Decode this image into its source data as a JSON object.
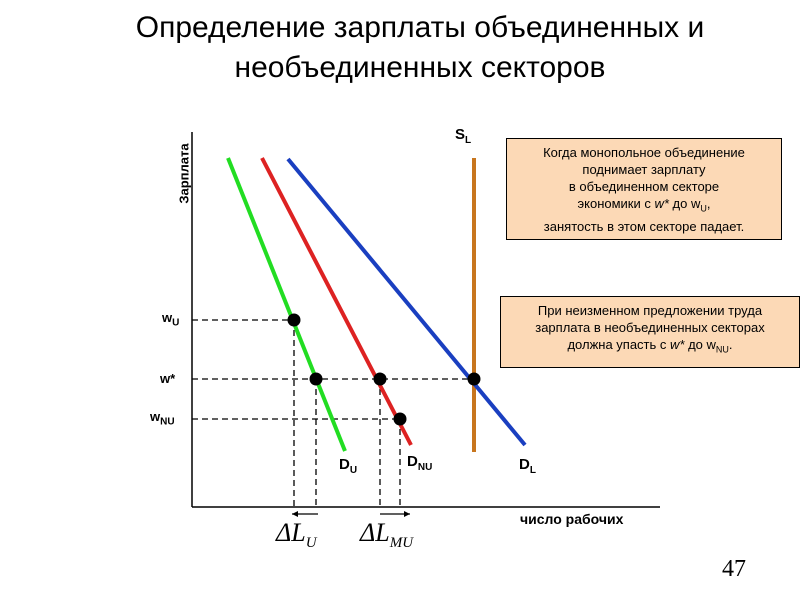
{
  "slide": {
    "title_line1": "Определение зарплаты объединенных и",
    "title_line2": "необъединенных секторов",
    "page_number": "47"
  },
  "axes": {
    "y_label": "Зарплата",
    "x_label": "число рабочих"
  },
  "wage_levels": [
    {
      "base": "w",
      "sub": "U"
    },
    {
      "base": "w*",
      "sub": ""
    },
    {
      "base": "w",
      "sub": "NU"
    }
  ],
  "curves": {
    "supply": {
      "base": "S",
      "sub": "L",
      "color": "#c8761e"
    },
    "demand_union": {
      "base": "D",
      "sub": "U",
      "color": "#22dd22"
    },
    "demand_nonunion": {
      "base": "D",
      "sub": "NU",
      "color": "#dd2222"
    },
    "demand_total": {
      "base": "D",
      "sub": "L",
      "color": "#1a3fc0"
    }
  },
  "deltas": [
    {
      "base": "ΔL",
      "sub": "U"
    },
    {
      "base": "ΔL",
      "sub": "MU"
    }
  ],
  "callouts": {
    "union": {
      "line1": "Когда монопольное объединение",
      "line2": "поднимает зарплату",
      "line3": "в объединенном секторе",
      "line4_pre": "экономики с ",
      "line4_w": "w*",
      "line4_mid": " до w",
      "line4_sub": "U",
      "line4_post": ",",
      "line5": "занятость в этом секторе падает."
    },
    "nonunion": {
      "line1": "При неизменном предложении труда",
      "line2": "зарплата в необъединенных секторах",
      "line3_pre": "должна упасть с ",
      "line3_w": "w*",
      "line3_mid": " до w",
      "line3_sub": "NU",
      "line3_post": "."
    }
  },
  "colors": {
    "callout_fill": "#fcd9b6",
    "axis": "#000000"
  }
}
